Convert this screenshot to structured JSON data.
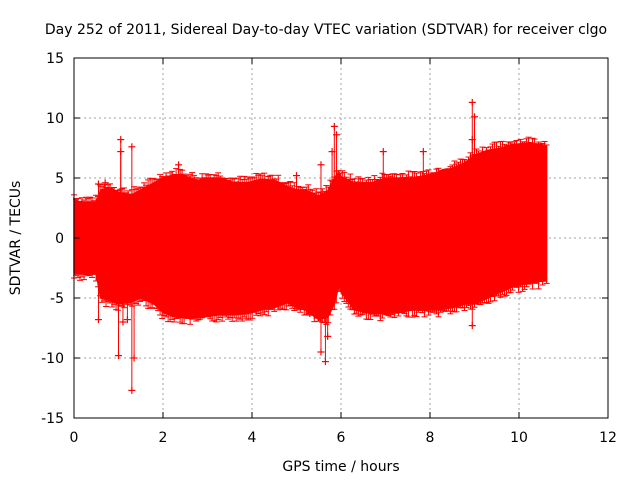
{
  "chart_data": {
    "type": "scatter",
    "title": "Day 252 of 2011, Sidereal Day-to-day VTEC variation (SDTVAR) for receiver clgo",
    "xlabel": "GPS time / hours",
    "ylabel": "SDTVAR / TECUs",
    "xlim": [
      0,
      12
    ],
    "ylim": [
      -15,
      15
    ],
    "x_ticks": [
      0,
      2,
      4,
      6,
      8,
      10,
      12
    ],
    "y_ticks": [
      -15,
      -10,
      -5,
      0,
      5,
      10,
      15
    ],
    "grid": true,
    "marker": "+",
    "color": "#ff0000",
    "series": [
      {
        "name": "SDTVAR",
        "envelope": {
          "x": [
            0.0,
            0.1,
            0.5,
            0.6,
            0.8,
            1.0,
            1.3,
            1.5,
            1.8,
            2.0,
            2.2,
            2.4,
            2.6,
            2.8,
            3.0,
            3.3,
            3.6,
            3.9,
            4.2,
            4.5,
            4.8,
            5.0,
            5.2,
            5.5,
            5.7,
            5.85,
            5.95,
            6.0,
            6.3,
            6.7,
            7.0,
            7.3,
            7.6,
            7.9,
            8.2,
            8.5,
            8.8,
            9.0,
            9.3,
            9.6,
            9.9,
            10.2,
            10.5,
            10.62
          ],
          "upper": [
            3.3,
            3.0,
            3.0,
            4.0,
            4.2,
            3.8,
            3.6,
            4.0,
            4.6,
            5.0,
            5.2,
            5.3,
            5.0,
            4.8,
            5.0,
            5.0,
            4.6,
            4.6,
            4.9,
            4.8,
            4.3,
            4.0,
            4.0,
            3.5,
            3.9,
            5.0,
            5.5,
            5.1,
            4.6,
            4.6,
            5.0,
            5.0,
            5.0,
            5.2,
            5.5,
            5.8,
            6.3,
            6.9,
            7.3,
            7.5,
            7.8,
            7.9,
            7.8,
            7.6
          ],
          "lower": [
            -3.0,
            -3.0,
            -3.0,
            -5.0,
            -5.2,
            -5.5,
            -5.3,
            -5.0,
            -5.5,
            -6.2,
            -6.5,
            -6.6,
            -6.7,
            -6.6,
            -6.5,
            -6.4,
            -6.4,
            -6.3,
            -6.0,
            -5.8,
            -5.4,
            -5.8,
            -6.0,
            -6.8,
            -6.6,
            -5.5,
            -4.0,
            -4.5,
            -6.0,
            -6.3,
            -6.3,
            -6.2,
            -6.0,
            -6.0,
            -6.0,
            -5.8,
            -5.5,
            -5.5,
            -5.0,
            -4.5,
            -4.0,
            -3.8,
            -3.6,
            -3.5
          ]
        },
        "outliers": [
          {
            "x": 0.55,
            "y": 4.5
          },
          {
            "x": 0.55,
            "y": -6.8
          },
          {
            "x": 0.7,
            "y": 4.6
          },
          {
            "x": 1.05,
            "y": 8.2
          },
          {
            "x": 1.05,
            "y": 7.2
          },
          {
            "x": 1.0,
            "y": -9.8
          },
          {
            "x": 1.1,
            "y": -7.0
          },
          {
            "x": 1.3,
            "y": 7.6
          },
          {
            "x": 1.3,
            "y": -12.7
          },
          {
            "x": 1.35,
            "y": -10.0
          },
          {
            "x": 1.2,
            "y": -6.8
          },
          {
            "x": 2.35,
            "y": 6.1
          },
          {
            "x": 5.55,
            "y": 6.1
          },
          {
            "x": 5.0,
            "y": 5.2
          },
          {
            "x": 5.3,
            "y": -6.3
          },
          {
            "x": 5.55,
            "y": -9.5
          },
          {
            "x": 5.65,
            "y": -10.3
          },
          {
            "x": 5.7,
            "y": -8.2
          },
          {
            "x": 5.85,
            "y": 9.3
          },
          {
            "x": 5.9,
            "y": 8.6
          },
          {
            "x": 5.8,
            "y": 7.2
          },
          {
            "x": 6.95,
            "y": 7.2
          },
          {
            "x": 7.85,
            "y": 7.2
          },
          {
            "x": 8.95,
            "y": 11.3
          },
          {
            "x": 9.0,
            "y": 10.1
          },
          {
            "x": 8.95,
            "y": 8.2
          },
          {
            "x": 8.95,
            "y": -7.3
          }
        ]
      }
    ]
  }
}
